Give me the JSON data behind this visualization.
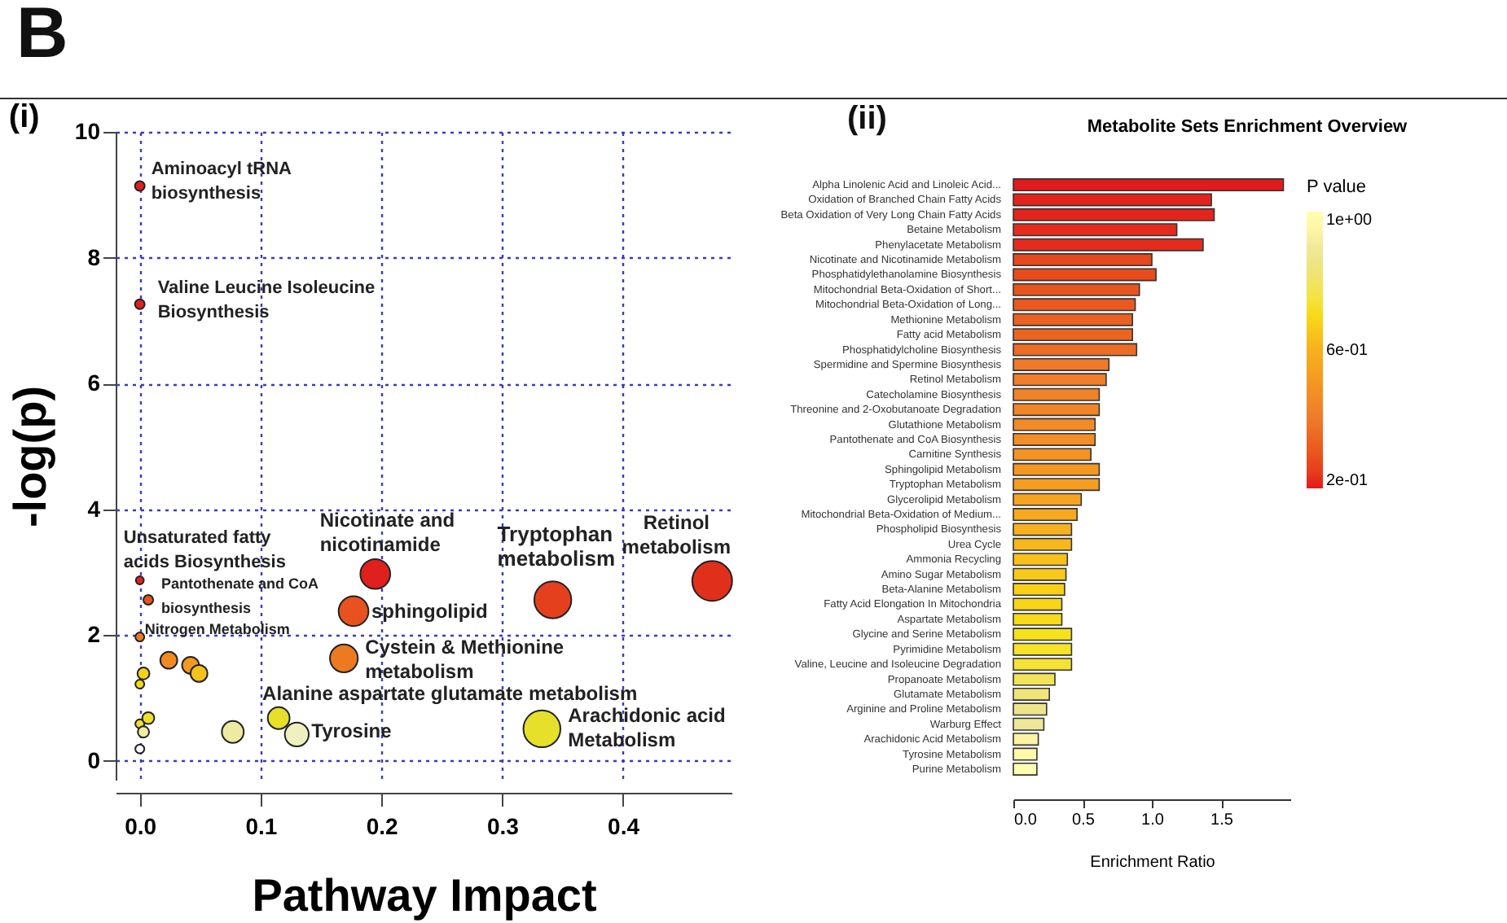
{
  "chart_data": [
    {
      "type": "bubble",
      "title": "(i)",
      "xlabel": "Pathway Impact",
      "ylabel": "-log(p)",
      "x": [
        0,
        0,
        0,
        0.007,
        0,
        0.024,
        0.042,
        0.049,
        0.003,
        0,
        0,
        0.007,
        0.003,
        0,
        0.077,
        0.115,
        0.13,
        0.169,
        0.177,
        0.195,
        0.342,
        0.474,
        0.333
      ],
      "values": [
        9.14,
        7.26,
        2.87,
        2.56,
        1.97,
        1.6,
        1.52,
        1.39,
        1.39,
        1.22,
        0.59,
        0.68,
        0.46,
        0.19,
        0.46,
        0.68,
        0.42,
        1.63,
        2.38,
        2.97,
        2.56,
        2.86,
        0.51
      ],
      "sizes": [
        0.06,
        0.06,
        0.04,
        0.06,
        0.05,
        0.18,
        0.18,
        0.18,
        0.09,
        0.05,
        0.05,
        0.09,
        0.08,
        0.05,
        0.3,
        0.3,
        0.36,
        0.49,
        0.56,
        0.56,
        0.86,
        1,
        0.86
      ],
      "colors": [
        "#e0201c",
        "#e0201c",
        "#e0201c",
        "#e8521e",
        "#ec7a20",
        "#f08a22",
        "#f29a20",
        "#f5c21a",
        "#f5d21a",
        "#f5d81a",
        "#efe02c",
        "#efe02c",
        "#efeda0",
        "#ffffff",
        "#eeeaa0",
        "#e6e02a",
        "#efefc0",
        "#ec7a20",
        "#e8521e",
        "#e0201c",
        "#e4401e",
        "#e0301c",
        "#e6e02a"
      ],
      "xlim": [
        -0.02,
        0.49
      ],
      "ylim": [
        -0.3,
        10
      ],
      "xticks": [
        {
          "value": 0,
          "label": "0.0"
        },
        0.1,
        0.2,
        0.3,
        0.4
      ],
      "yticks": [
        0,
        2,
        4,
        6,
        8,
        10
      ],
      "grid": true,
      "annotations": [
        "B",
        {
          "text": "Aminoacyl tRNA biosynthesis",
          "x": 0,
          "y": 9.14
        },
        {
          "text": "Valine Leucine Isoleucine Biosynthesis",
          "x": 0,
          "y": 7.26
        },
        {
          "text": "Unsaturated fatty acids Biosynthesis",
          "x": 0,
          "y": 2.87
        },
        {
          "text": "Pantothenate and CoA biosynthesis",
          "x": 0.007,
          "y": 2.56
        },
        {
          "text": "Nitrogen Metabolism",
          "x": 0,
          "y": 1.97
        },
        {
          "text": "Nicotinate and nicotinamide",
          "x": 0.195,
          "y": 2.97
        },
        {
          "text": "sphingolipid",
          "x": 0.177,
          "y": 2.38
        },
        {
          "text": "Cystein & Methionine metabolism",
          "x": 0.169,
          "y": 1.63
        },
        {
          "text": "Alanine aspartate glutamate metabolism",
          "x": 0.115,
          "y": 0.68
        },
        {
          "text": "Tyrosine",
          "x": 0.13,
          "y": 0.42
        },
        {
          "text": "Tryptophan metabolism",
          "x": 0.342,
          "y": 2.56
        },
        {
          "text": "Retinol metabolism",
          "x": 0.474,
          "y": 2.86
        },
        {
          "text": "Arachidonic acid Metabolism",
          "x": 0.333,
          "y": 0.51
        }
      ]
    },
    {
      "type": "bar",
      "orientation": "horizontal",
      "title": "Metabolite Sets Enrichment Overview",
      "xlabel": "Enrichment Ratio",
      "clabel": "P value",
      "annotations": [
        "(ii)"
      ],
      "categories": [
        "Alpha Linolenic Acid and Linoleic Acid...",
        "Oxidation of Branched Chain Fatty Acids",
        "Beta Oxidation of Very Long Chain Fatty Acids",
        "Betaine Metabolism",
        "Phenylacetate Metabolism",
        "Nicotinate and Nicotinamide Metabolism",
        "Phosphatidylethanolamine Biosynthesis",
        "Mitochondrial Beta-Oxidation of Short...",
        "Mitochondrial Beta-Oxidation of Long...",
        "Methionine Metabolism",
        "Fatty acid Metabolism",
        "Phosphatidylcholine Biosynthesis",
        "Spermidine and Spermine Biosynthesis",
        "Retinol Metabolism",
        "Catecholamine Biosynthesis",
        "Threonine and 2-Oxobutanoate Degradation",
        "Glutathione Metabolism",
        "Pantothenate and CoA Biosynthesis",
        "Carnitine Synthesis",
        "Sphingolipid Metabolism",
        "Tryptophan Metabolism",
        "Glycerolipid Metabolism",
        "Mitochondrial Beta-Oxidation of Medium...",
        "Phospholipid Biosynthesis",
        "Urea Cycle",
        "Ammonia Recycling",
        "Amino Sugar Metabolism",
        "Beta-Alanine Metabolism",
        "Fatty Acid Elongation In Mitochondria",
        "Aspartate Metabolism",
        "Glycine and Serine Metabolism",
        "Pyrimidine Metabolism",
        "Valine, Leucine and Isoleucine Degradation",
        "Propanoate Metabolism",
        "Glutamate Metabolism",
        "Arginine and Proline Metabolism",
        "Warburg Effect",
        "Arachidonic Acid Metabolism",
        "Tyrosine Metabolism",
        "Purine Metabolism"
      ],
      "values": [
        1.95,
        1.43,
        1.45,
        1.18,
        1.37,
        1.0,
        1.03,
        0.91,
        0.88,
        0.86,
        0.86,
        0.89,
        0.69,
        0.67,
        0.62,
        0.62,
        0.59,
        0.59,
        0.56,
        0.62,
        0.62,
        0.49,
        0.46,
        0.42,
        0.42,
        0.39,
        0.38,
        0.37,
        0.35,
        0.35,
        0.42,
        0.42,
        0.42,
        0.3,
        0.26,
        0.24,
        0.22,
        0.18,
        0.17,
        0.17
      ],
      "cvalues": [
        0.2,
        0.21,
        0.21,
        0.22,
        0.22,
        0.27,
        0.28,
        0.3,
        0.31,
        0.33,
        0.34,
        0.36,
        0.4,
        0.41,
        0.43,
        0.44,
        0.46,
        0.47,
        0.49,
        0.51,
        0.53,
        0.55,
        0.57,
        0.6,
        0.62,
        0.64,
        0.66,
        0.68,
        0.69,
        0.7,
        0.72,
        0.73,
        0.74,
        0.78,
        0.83,
        0.86,
        0.89,
        0.94,
        0.97,
        1.0
      ],
      "clim": [
        0.2,
        1.0
      ],
      "cticks": [
        {
          "value": 0.2,
          "label": "2e-01"
        },
        {
          "value": 0.6,
          "label": "6e-01"
        },
        {
          "value": 1.0,
          "label": "1e+00"
        }
      ],
      "xlim": [
        0,
        2
      ],
      "xticks": [
        {
          "value": 0,
          "label": "0.0"
        },
        {
          "value": 0.5,
          "label": "0.5"
        },
        {
          "value": 1,
          "label": "1.0"
        },
        {
          "value": 1.5,
          "label": "1.5"
        }
      ]
    }
  ]
}
